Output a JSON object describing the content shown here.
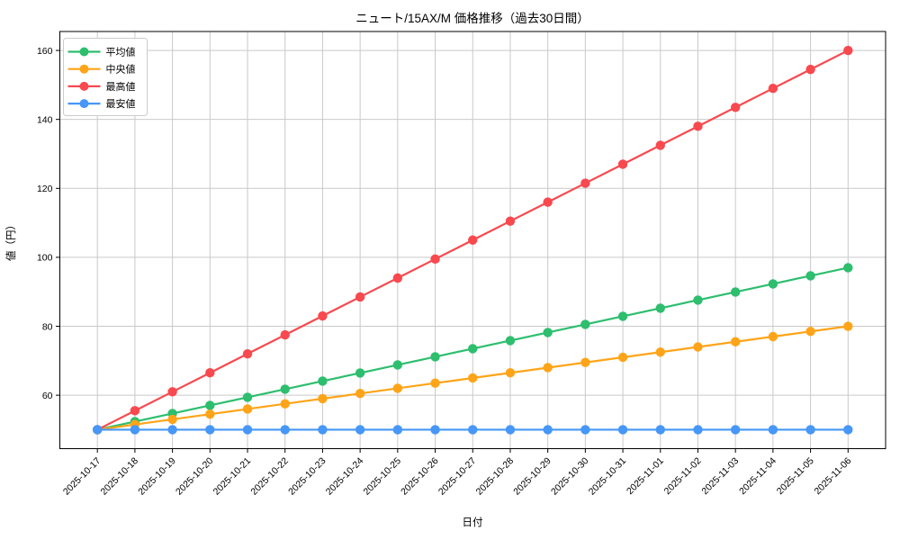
{
  "figure": {
    "title": "ニュート/15AX/M 価格推移（過去30日間）"
  },
  "chart_data": {
    "type": "line",
    "title": "ニュート/15AX/M 価格推移（過去30日間）",
    "xlabel": "日付",
    "ylabel": "値（円）",
    "x": [
      "2025-10-17",
      "2025-10-18",
      "2025-10-19",
      "2025-10-20",
      "2025-10-21",
      "2025-10-22",
      "2025-10-23",
      "2025-10-24",
      "2025-10-25",
      "2025-10-26",
      "2025-10-27",
      "2025-10-28",
      "2025-10-29",
      "2025-10-30",
      "2025-10-31",
      "2025-11-01",
      "2025-11-02",
      "2025-11-03",
      "2025-11-04",
      "2025-11-05",
      "2025-11-06"
    ],
    "series": [
      {
        "id": "average",
        "name": "平均値",
        "color": "#2dbe6e",
        "values": [
          50,
          52.35,
          54.7,
          57.05,
          59.4,
          61.75,
          64.1,
          66.45,
          68.8,
          71.15,
          73.5,
          75.85,
          78.2,
          80.55,
          82.9,
          85.25,
          87.6,
          89.95,
          92.3,
          94.65,
          97
        ]
      },
      {
        "id": "median",
        "name": "中央値",
        "color": "#ffa418",
        "values": [
          50,
          51.5,
          53,
          54.5,
          56,
          57.5,
          59,
          60.5,
          62,
          63.5,
          65,
          66.5,
          68,
          69.5,
          71,
          72.5,
          74,
          75.5,
          77,
          78.5,
          80
        ]
      },
      {
        "id": "highest",
        "name": "最高値",
        "color": "#f8494f",
        "values": [
          50,
          55.5,
          61,
          66.5,
          72,
          77.5,
          83,
          88.5,
          94,
          99.5,
          105,
          110.5,
          116,
          121.5,
          127,
          132.5,
          138,
          143.5,
          149,
          154.5,
          160
        ]
      },
      {
        "id": "lowest",
        "name": "最安値",
        "color": "#4697f7",
        "values": [
          50,
          50,
          50,
          50,
          50,
          50,
          50,
          50,
          50,
          50,
          50,
          50,
          50,
          50,
          50,
          50,
          50,
          50,
          50,
          50,
          50
        ]
      }
    ],
    "yticks": [
      60,
      80,
      100,
      120,
      140,
      160
    ],
    "ylim": [
      44.5,
      165.5
    ],
    "xlim": [
      -1,
      21
    ],
    "grid": true,
    "legend_position": "upper-left",
    "x_tick_rotation": 45
  },
  "colors": {
    "background": "#ffffff",
    "grid": "#c9c9c9",
    "spine": "#000000",
    "tick_text": "#000000",
    "legend_border": "#cccccc",
    "legend_fill": "#ffffff"
  }
}
